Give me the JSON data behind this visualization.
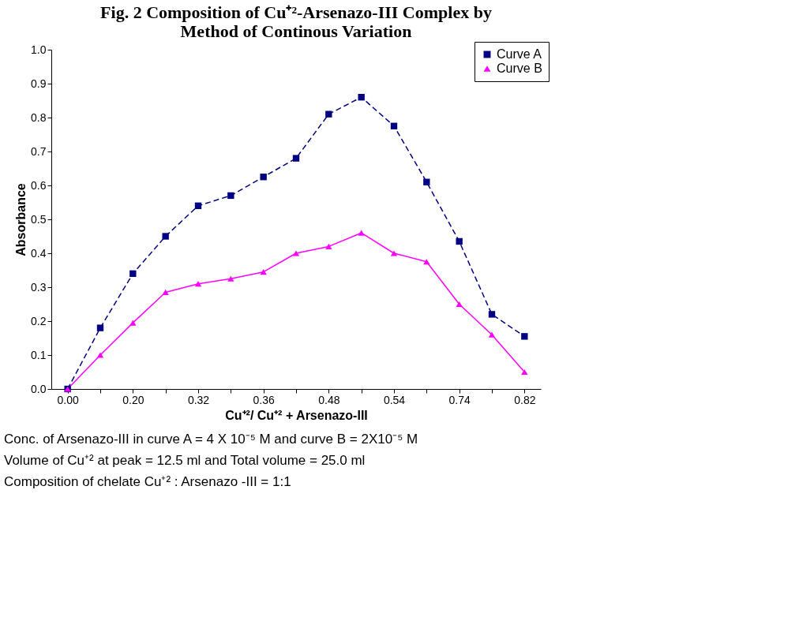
{
  "chart_data": {
    "type": "line",
    "title": [
      "Fig. 2 Composition of Cu⁺²-Arsenazo-III Complex by",
      "Method of Continous Variation"
    ],
    "xlabel": "Cu⁺²/ Cu⁺² + Arsenazo-III",
    "ylabel": "Absorbance",
    "categories": [
      "0.00",
      null,
      "0.20",
      null,
      "0.32",
      null,
      "0.36",
      null,
      "0.48",
      null,
      "0.54",
      null,
      "0.74",
      null,
      "0.82"
    ],
    "series": [
      {
        "name": "Curve A",
        "color": "#000080",
        "marker": "square",
        "line_style": "dashed",
        "values": [
          0,
          0.18,
          0.34,
          0.45,
          0.54,
          0.57,
          0.625,
          0.68,
          0.81,
          0.86,
          0.775,
          0.61,
          0.435,
          0.22,
          0.155
        ]
      },
      {
        "name": "Curve B",
        "color": "#ff00ff",
        "marker": "triangle",
        "line_style": "solid",
        "values": [
          0,
          0.1,
          0.195,
          0.285,
          0.31,
          0.325,
          0.345,
          0.4,
          0.42,
          0.46,
          0.4,
          0.375,
          0.25,
          0.16,
          0.05
        ]
      }
    ],
    "ylim": [
      0,
      1.0
    ],
    "yticks": [
      {
        "value": 0,
        "label": "0.0"
      },
      0.1,
      0.2,
      0.3,
      0.4,
      0.5,
      0.6,
      0.7,
      0.8,
      0.9,
      {
        "value": 1,
        "label": "1.0"
      }
    ],
    "grid": false,
    "legend": "top right",
    "annotations": [
      "Conc. of Arsenazo-III in curve A = 4 X 10⁻⁵ M and curve B = 2X10⁻⁵ M",
      "Volume of Cu⁺² at peak = 12.5 ml and Total volume = 25.0 ml",
      "Composition of chelate Cu⁺² : Arsenazo -III = 1:1"
    ]
  }
}
